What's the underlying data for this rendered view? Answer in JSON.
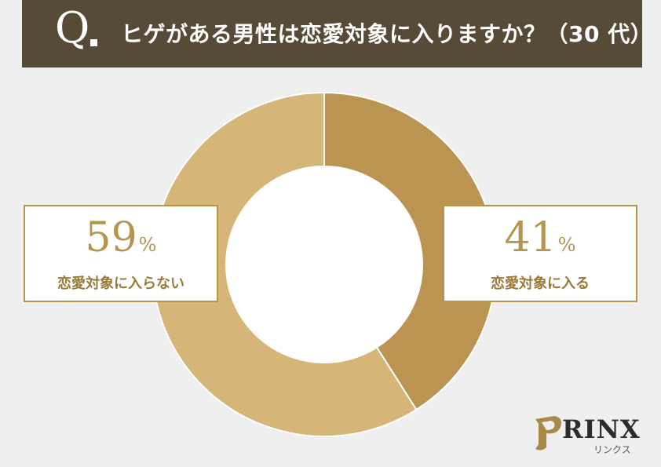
{
  "header": {
    "q": "Q",
    "question": "ヒゲがある男性は恋愛対象に入りますか？（30 代）"
  },
  "chart_data": {
    "type": "pie",
    "title": "ヒゲがある男性は恋愛対象に入りますか？（30 代）",
    "slices": [
      {
        "label": "恋愛対象に入る",
        "value": 41,
        "color": "#bb9452"
      },
      {
        "label": "恋愛対象に入らない",
        "value": 59,
        "color": "#d6b579"
      }
    ],
    "unit": "%"
  },
  "labels": {
    "yes": {
      "num": "41",
      "unit": "%",
      "text": "恋愛対象に入る"
    },
    "no": {
      "num": "59",
      "unit": "%",
      "text": "恋愛対象に入らない"
    }
  },
  "colors": {
    "header_bg": "#574a37",
    "accent": "#b4944f",
    "background": "#efefef"
  },
  "logo": {
    "text": "RINX",
    "sub": "リンクス"
  }
}
